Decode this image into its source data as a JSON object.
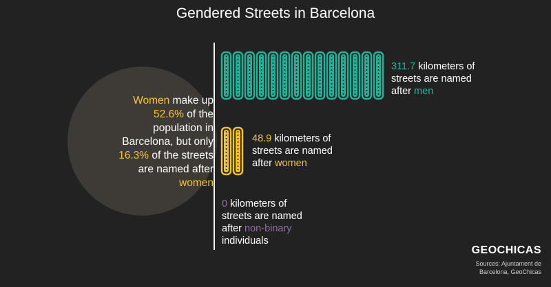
{
  "title": "Gendered Streets in Barcelona",
  "circle": {
    "line1_a": "Women",
    "line1_b": " make up",
    "line2": "52.6%",
    "line2_b": " of the",
    "line3": "population in",
    "line4": "Barcelona, but only",
    "line5": "16.3%",
    "line5_b": " of the streets",
    "line6": "are named after",
    "line7": "women"
  },
  "men": {
    "value": "311.7",
    "text1": " kilometers of",
    "text2": "streets are named",
    "text3": "after ",
    "group": "men",
    "street_count": 14
  },
  "women": {
    "value": "48.9",
    "text1": " kilometers of",
    "text2": "streets are named",
    "text3": "after ",
    "group": "women",
    "street_count": 2
  },
  "nonbinary": {
    "value": "0",
    "text1": " kilometers of",
    "text2": "streets are named",
    "text3": "after ",
    "group": "non-binary",
    "text4": "individuals"
  },
  "logo": "GEOCHICAS",
  "sources": "Sources: Ajuntament de Barcelona, GeoChicas",
  "colors": {
    "background": "#222222",
    "circle": "#3e3a36",
    "men": "#21b39a",
    "women": "#f4c430",
    "nonbinary": "#8e6fa6"
  }
}
